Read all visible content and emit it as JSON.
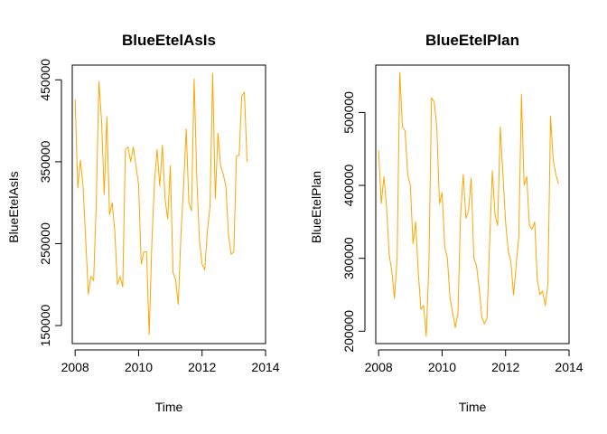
{
  "colors": {
    "series": "#FFA500",
    "axis": "#000000",
    "background": "#FFFFFF"
  },
  "chart_data": [
    {
      "type": "line",
      "title": "BlueEtelAsIs",
      "xlabel": "Time",
      "ylabel": "BlueEtelAsIs",
      "xlim": [
        2007.91,
        2014.0
      ],
      "ylim": [
        128000,
        468000
      ],
      "x_ticks": [
        2008,
        2010,
        2012,
        2014
      ],
      "x_tick_labels": [
        "2008",
        "2010",
        "2012",
        "2014"
      ],
      "y_ticks": [
        150000,
        250000,
        350000,
        450000
      ],
      "y_tick_labels": [
        "150000",
        "250000",
        "350000",
        "450000"
      ],
      "series": [
        {
          "x_start": 2008.0,
          "x_step": 0.0833333,
          "values": [
            426000,
            318000,
            352000,
            320000,
            255000,
            188000,
            210000,
            205000,
            300000,
            448000,
            400000,
            310000,
            405000,
            285000,
            300000,
            265000,
            200000,
            210000,
            197000,
            365000,
            368000,
            350000,
            368000,
            345000,
            322000,
            225000,
            240000,
            240000,
            139000,
            250000,
            325000,
            365000,
            320000,
            370000,
            305000,
            280000,
            345000,
            215000,
            206000,
            176000,
            260000,
            320000,
            390000,
            300000,
            290000,
            451000,
            330000,
            255000,
            225000,
            218000,
            265000,
            295000,
            458000,
            305000,
            385000,
            345000,
            335000,
            320000,
            260000,
            237000,
            240000,
            357000,
            358000,
            430000,
            435000,
            350000
          ]
        }
      ]
    },
    {
      "type": "line",
      "title": "BlueEtelPlan",
      "xlabel": "Time",
      "ylabel": "BlueEtelPlan",
      "xlim": [
        2007.91,
        2014.0
      ],
      "ylim": [
        183000,
        565000
      ],
      "x_ticks": [
        2008,
        2010,
        2012,
        2014
      ],
      "x_tick_labels": [
        "2008",
        "2010",
        "2012",
        "2014"
      ],
      "y_ticks": [
        200000,
        300000,
        400000,
        500000
      ],
      "y_tick_labels": [
        "200000",
        "300000",
        "400000",
        "500000"
      ],
      "series": [
        {
          "x_start": 2008.0,
          "x_step": 0.0833333,
          "values": [
            448000,
            375000,
            412000,
            370000,
            305000,
            282000,
            245000,
            300000,
            555000,
            480000,
            475000,
            415000,
            400000,
            320000,
            350000,
            280000,
            230000,
            235000,
            193000,
            290000,
            520000,
            515000,
            480000,
            375000,
            390000,
            315000,
            300000,
            245000,
            225000,
            205000,
            225000,
            360000,
            415000,
            355000,
            365000,
            410000,
            300000,
            290000,
            260000,
            220000,
            210000,
            218000,
            325000,
            420000,
            360000,
            345000,
            480000,
            415000,
            350000,
            310000,
            295000,
            250000,
            290000,
            330000,
            525000,
            400000,
            412000,
            345000,
            340000,
            350000,
            270000,
            250000,
            255000,
            235000,
            265000,
            495000,
            435000,
            415000,
            402000
          ]
        }
      ]
    }
  ]
}
